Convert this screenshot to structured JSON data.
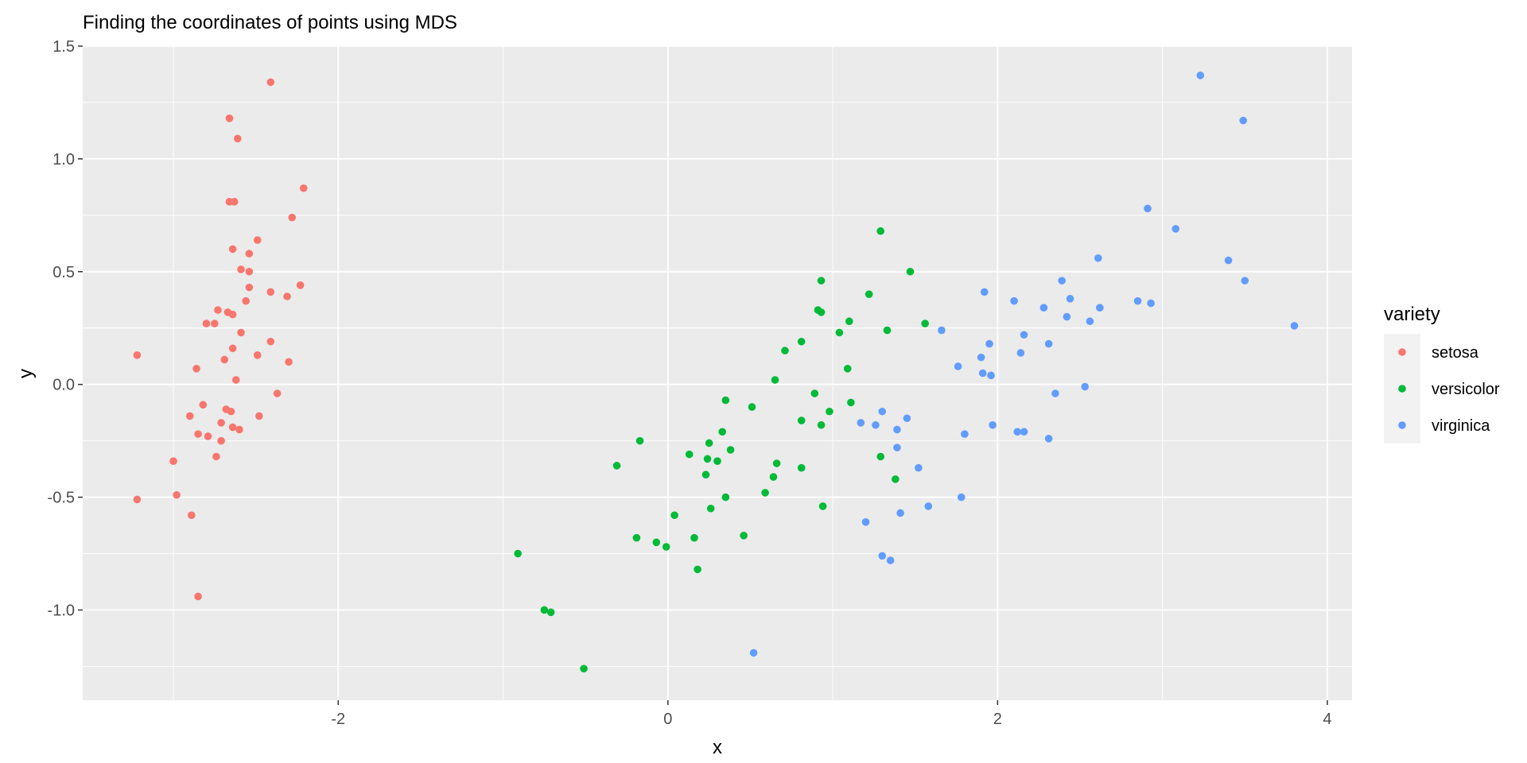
{
  "chart_data": {
    "type": "scatter",
    "title": "Finding the coordinates of points using MDS",
    "xlabel": "x",
    "ylabel": "y",
    "xlim": [
      -3.55,
      4.15
    ],
    "ylim": [
      -1.4,
      1.5
    ],
    "x_ticks": [
      -2,
      0,
      2,
      4
    ],
    "x_tick_labels": [
      "-2",
      "0",
      "2",
      "4"
    ],
    "y_ticks": [
      -1.0,
      -0.5,
      0.0,
      0.5,
      1.0,
      1.5
    ],
    "y_tick_labels": [
      "-1.0",
      "-0.5",
      "0.0",
      "0.5",
      "1.0",
      "1.5"
    ],
    "grid": true,
    "background": "#EBEBEB",
    "legend": {
      "title": "variety",
      "position": "right"
    },
    "series": [
      {
        "name": "setosa",
        "color": "#F8766D",
        "points": [
          [
            -2.41,
            1.34
          ],
          [
            -2.66,
            1.18
          ],
          [
            -2.61,
            1.09
          ],
          [
            -2.21,
            0.87
          ],
          [
            -2.28,
            0.74
          ],
          [
            -2.66,
            0.81
          ],
          [
            -2.63,
            0.81
          ],
          [
            -2.49,
            0.64
          ],
          [
            -2.64,
            0.6
          ],
          [
            -2.54,
            0.58
          ],
          [
            -2.59,
            0.51
          ],
          [
            -2.54,
            0.5
          ],
          [
            -2.23,
            0.44
          ],
          [
            -2.54,
            0.43
          ],
          [
            -2.41,
            0.41
          ],
          [
            -2.31,
            0.39
          ],
          [
            -2.56,
            0.37
          ],
          [
            -2.73,
            0.33
          ],
          [
            -2.67,
            0.32
          ],
          [
            -2.64,
            0.31
          ],
          [
            -2.8,
            0.27
          ],
          [
            -2.75,
            0.27
          ],
          [
            -2.59,
            0.23
          ],
          [
            -2.41,
            0.19
          ],
          [
            -2.64,
            0.16
          ],
          [
            -2.49,
            0.13
          ],
          [
            -3.22,
            0.13
          ],
          [
            -2.69,
            0.11
          ],
          [
            -2.3,
            0.1
          ],
          [
            -2.86,
            0.07
          ],
          [
            -2.62,
            0.02
          ],
          [
            -2.37,
            -0.04
          ],
          [
            -2.82,
            -0.09
          ],
          [
            -2.68,
            -0.11
          ],
          [
            -2.65,
            -0.12
          ],
          [
            -2.9,
            -0.14
          ],
          [
            -2.48,
            -0.14
          ],
          [
            -2.71,
            -0.17
          ],
          [
            -2.64,
            -0.19
          ],
          [
            -2.6,
            -0.2
          ],
          [
            -2.85,
            -0.22
          ],
          [
            -2.79,
            -0.23
          ],
          [
            -2.71,
            -0.25
          ],
          [
            -2.74,
            -0.32
          ],
          [
            -3.0,
            -0.34
          ],
          [
            -2.98,
            -0.49
          ],
          [
            -3.22,
            -0.51
          ],
          [
            -2.89,
            -0.58
          ],
          [
            -2.85,
            -0.94
          ]
        ]
      },
      {
        "name": "versicolor",
        "color": "#00BA38",
        "points": [
          [
            1.29,
            0.68
          ],
          [
            1.47,
            0.5
          ],
          [
            0.93,
            0.46
          ],
          [
            1.22,
            0.4
          ],
          [
            0.91,
            0.33
          ],
          [
            0.93,
            0.32
          ],
          [
            1.1,
            0.28
          ],
          [
            1.56,
            0.27
          ],
          [
            1.33,
            0.24
          ],
          [
            1.04,
            0.23
          ],
          [
            0.81,
            0.19
          ],
          [
            0.71,
            0.15
          ],
          [
            1.09,
            0.07
          ],
          [
            0.65,
            0.02
          ],
          [
            0.89,
            -0.04
          ],
          [
            0.35,
            -0.07
          ],
          [
            1.11,
            -0.08
          ],
          [
            0.51,
            -0.1
          ],
          [
            0.98,
            -0.12
          ],
          [
            0.81,
            -0.16
          ],
          [
            0.93,
            -0.18
          ],
          [
            0.33,
            -0.21
          ],
          [
            -0.17,
            -0.25
          ],
          [
            0.25,
            -0.26
          ],
          [
            0.38,
            -0.29
          ],
          [
            0.13,
            -0.31
          ],
          [
            1.29,
            -0.32
          ],
          [
            0.24,
            -0.33
          ],
          [
            0.3,
            -0.34
          ],
          [
            0.66,
            -0.35
          ],
          [
            -0.31,
            -0.36
          ],
          [
            0.81,
            -0.37
          ],
          [
            0.23,
            -0.4
          ],
          [
            0.64,
            -0.41
          ],
          [
            1.38,
            -0.42
          ],
          [
            0.59,
            -0.48
          ],
          [
            0.35,
            -0.5
          ],
          [
            0.94,
            -0.54
          ],
          [
            0.26,
            -0.55
          ],
          [
            0.04,
            -0.58
          ],
          [
            0.46,
            -0.67
          ],
          [
            -0.19,
            -0.68
          ],
          [
            0.16,
            -0.68
          ],
          [
            -0.07,
            -0.7
          ],
          [
            -0.01,
            -0.72
          ],
          [
            -0.91,
            -0.75
          ],
          [
            0.18,
            -0.82
          ],
          [
            -0.75,
            -1.0
          ],
          [
            -0.71,
            -1.01
          ],
          [
            -0.51,
            -1.26
          ]
        ]
      },
      {
        "name": "virginica",
        "color": "#619CFF",
        "points": [
          [
            3.23,
            1.37
          ],
          [
            3.49,
            1.17
          ],
          [
            2.91,
            0.78
          ],
          [
            3.08,
            0.69
          ],
          [
            2.61,
            0.56
          ],
          [
            3.4,
            0.55
          ],
          [
            2.39,
            0.46
          ],
          [
            3.5,
            0.46
          ],
          [
            1.92,
            0.41
          ],
          [
            2.44,
            0.38
          ],
          [
            2.85,
            0.37
          ],
          [
            2.1,
            0.37
          ],
          [
            2.93,
            0.36
          ],
          [
            2.62,
            0.34
          ],
          [
            2.28,
            0.34
          ],
          [
            2.42,
            0.3
          ],
          [
            2.56,
            0.28
          ],
          [
            3.8,
            0.26
          ],
          [
            1.66,
            0.24
          ],
          [
            2.16,
            0.22
          ],
          [
            1.95,
            0.18
          ],
          [
            2.31,
            0.18
          ],
          [
            2.14,
            0.14
          ],
          [
            1.9,
            0.12
          ],
          [
            1.76,
            0.08
          ],
          [
            1.91,
            0.05
          ],
          [
            1.96,
            0.04
          ],
          [
            2.53,
            -0.01
          ],
          [
            2.35,
            -0.04
          ],
          [
            1.3,
            -0.12
          ],
          [
            1.45,
            -0.15
          ],
          [
            1.17,
            -0.17
          ],
          [
            1.26,
            -0.18
          ],
          [
            1.97,
            -0.18
          ],
          [
            1.39,
            -0.2
          ],
          [
            2.12,
            -0.21
          ],
          [
            2.16,
            -0.21
          ],
          [
            1.8,
            -0.22
          ],
          [
            2.31,
            -0.24
          ],
          [
            1.39,
            -0.28
          ],
          [
            1.52,
            -0.37
          ],
          [
            1.78,
            -0.5
          ],
          [
            1.58,
            -0.54
          ],
          [
            1.41,
            -0.57
          ],
          [
            1.2,
            -0.61
          ],
          [
            1.3,
            -0.76
          ],
          [
            1.35,
            -0.78
          ],
          [
            0.52,
            -1.19
          ]
        ]
      }
    ]
  }
}
